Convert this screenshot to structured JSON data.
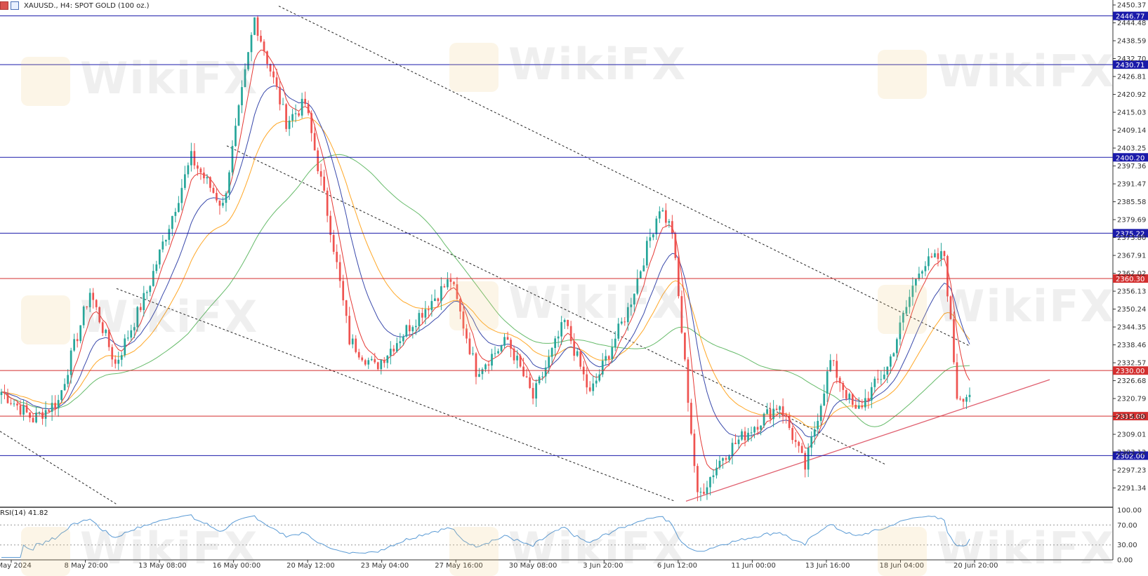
{
  "header": {
    "symbol_text": "XAUUSD., H4:  SPOT GOLD (100 oz.)"
  },
  "watermark": {
    "text": "WikiFX"
  },
  "chart_data": {
    "type": "candlestick",
    "title": "XAUUSD., H4:  SPOT GOLD (100 oz.)",
    "colors": {
      "up": "#26a69a",
      "down": "#ef5350",
      "blue_level": "#1a1aaa",
      "red_level": "#d32f2f",
      "ma_red": "#e53935",
      "ma_blue": "#3949ab",
      "ma_orange": "#ffa726",
      "ma_green": "#66bb6a",
      "rsi": "#5b9bd5"
    },
    "price_axis": {
      "min": 2285,
      "max": 2452,
      "ticks": [
        "2450.37",
        "2444.48",
        "2438.59",
        "2432.70",
        "2426.81",
        "2420.92",
        "2415.03",
        "2409.14",
        "2403.25",
        "2397.36",
        "2391.47",
        "2385.58",
        "2379.69",
        "2373.80",
        "2367.91",
        "2362.02",
        "2356.13",
        "2350.24",
        "2344.35",
        "2338.46",
        "2332.57",
        "2326.68",
        "2320.79",
        "2314.90",
        "2309.01",
        "2303.12",
        "2297.23",
        "2291.34"
      ]
    },
    "level_lines": [
      {
        "price": 2446.77,
        "label": "2446.77",
        "kind": "blue"
      },
      {
        "price": 2430.71,
        "label": "2430.71",
        "kind": "blue"
      },
      {
        "price": 2400.2,
        "label": "2400.20",
        "kind": "blue"
      },
      {
        "price": 2375.22,
        "label": "2375.22",
        "kind": "blue"
      },
      {
        "price": 2360.3,
        "label": "2360.30",
        "kind": "red"
      },
      {
        "price": 2330.0,
        "label": "2330.00",
        "kind": "red"
      },
      {
        "price": 2315.0,
        "label": "2315.00",
        "kind": "red"
      },
      {
        "price": 2302.0,
        "label": "2302.00",
        "kind": "blue"
      }
    ],
    "x_labels": [
      "6 May 2024",
      "8 May 20:00",
      "13 May 08:00",
      "16 May 00:00",
      "20 May 12:00",
      "23 May 04:00",
      "27 May 16:00",
      "30 May 08:00",
      "3 Jun 20:00",
      "6 Jun 12:00",
      "11 Jun 00:00",
      "13 Jun 16:00",
      "18 Jun 04:00",
      "20 Jun 20:00"
    ],
    "anchors": [
      [
        0,
        2323
      ],
      [
        10,
        2314
      ],
      [
        18,
        2320
      ],
      [
        28,
        2356
      ],
      [
        36,
        2332
      ],
      [
        46,
        2356
      ],
      [
        60,
        2400
      ],
      [
        70,
        2384
      ],
      [
        80,
        2446
      ],
      [
        90,
        2412
      ],
      [
        96,
        2418
      ],
      [
        104,
        2377
      ],
      [
        110,
        2340
      ],
      [
        118,
        2331
      ],
      [
        130,
        2346
      ],
      [
        142,
        2360
      ],
      [
        150,
        2330
      ],
      [
        160,
        2340
      ],
      [
        168,
        2321
      ],
      [
        178,
        2346
      ],
      [
        186,
        2322
      ],
      [
        198,
        2350
      ],
      [
        208,
        2384
      ],
      [
        212,
        2376
      ],
      [
        220,
        2288
      ],
      [
        228,
        2302
      ],
      [
        238,
        2312
      ],
      [
        246,
        2319
      ],
      [
        254,
        2298
      ],
      [
        262,
        2333
      ],
      [
        270,
        2316
      ],
      [
        280,
        2331
      ],
      [
        290,
        2364
      ],
      [
        298,
        2368
      ],
      [
        302,
        2322
      ],
      [
        306,
        2322
      ]
    ],
    "rsi": {
      "label": "RSI(14) 41.82",
      "value": 41.82,
      "min": 0,
      "max": 100,
      "ticks": [
        "100.00",
        "70.00",
        "30.00",
        "0.00"
      ],
      "levels": [
        70,
        30
      ]
    }
  }
}
